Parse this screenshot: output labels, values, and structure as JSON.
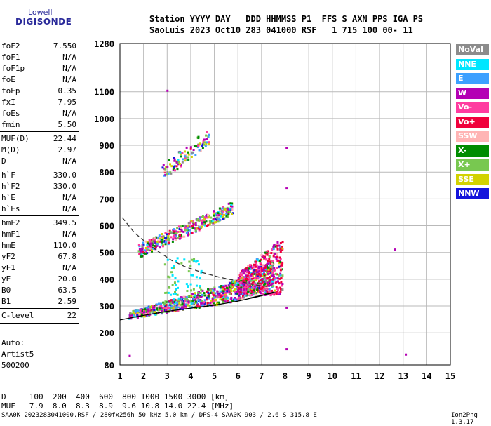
{
  "logo": {
    "line1": "Lowell",
    "line2": "DIGISONDE"
  },
  "header": {
    "line1": "Station YYYY DAY   DDD HHMMSS P1  FFS S AXN PPS IGA PS",
    "line2": "SaoLuis 2023 Oct10 283 041000 RSF   1 715 100 00- 11"
  },
  "params": [
    {
      "name": "foF2",
      "value": "7.550"
    },
    {
      "name": "foF1",
      "value": "N/A"
    },
    {
      "name": "foF1p",
      "value": "N/A"
    },
    {
      "name": "foE",
      "value": "N/A"
    },
    {
      "name": "foEp",
      "value": "0.35"
    },
    {
      "name": "fxI",
      "value": "7.95"
    },
    {
      "name": "foEs",
      "value": "N/A"
    },
    {
      "name": "fmin",
      "value": "5.50"
    },
    {
      "name": "MUF(D)",
      "value": "22.44"
    },
    {
      "name": "M(D)",
      "value": "2.97"
    },
    {
      "name": "D",
      "value": "N/A"
    },
    {
      "name": "h`F",
      "value": "330.0"
    },
    {
      "name": "h`F2",
      "value": "330.0"
    },
    {
      "name": "h`E",
      "value": "N/A"
    },
    {
      "name": "h`Es",
      "value": "N/A"
    },
    {
      "name": "hmF2",
      "value": "349.5"
    },
    {
      "name": "hmF1",
      "value": "N/A"
    },
    {
      "name": "hmE",
      "value": "110.0"
    },
    {
      "name": "yF2",
      "value": "67.8"
    },
    {
      "name": "yF1",
      "value": "N/A"
    },
    {
      "name": "yE",
      "value": "20.0"
    },
    {
      "name": "B0",
      "value": "63.5"
    },
    {
      "name": "B1",
      "value": "2.59"
    },
    {
      "name": "C-level",
      "value": "22"
    }
  ],
  "autoscale": {
    "line1": "Auto:",
    "line2": "Artist5",
    "line3": "500200"
  },
  "legend": [
    {
      "label": "NoVal",
      "color": "#8c8c8c"
    },
    {
      "label": "NNE",
      "color": "#00e6ff"
    },
    {
      "label": "E",
      "color": "#3ca0ff"
    },
    {
      "label": "W",
      "color": "#b400b4"
    },
    {
      "label": "Vo-",
      "color": "#ff3ca0"
    },
    {
      "label": "Vo+",
      "color": "#f0003c"
    },
    {
      "label": "SSW",
      "color": "#ffb4b4"
    },
    {
      "label": "X-",
      "color": "#008c00"
    },
    {
      "label": "X+",
      "color": "#78c850"
    },
    {
      "label": "SSE",
      "color": "#d2d200"
    },
    {
      "label": "NNW",
      "color": "#1414dc"
    }
  ],
  "footer": {
    "line1": "D     100  200  400  600  800 1000 1500 3000 [km]",
    "line2": "MUF   7.9  8.0  8.3  8.9  9.6 10.8 14.0 22.4 [MHz]",
    "credit": "SAA0K_2023283041000.RSF / 280fx256h 50 kHz 5.0 km / DPS-4 SAA0K 903 / 2.6 S 315.8 E",
    "version": "Ion2Png 1.3.17"
  },
  "chart_data": {
    "type": "scatter",
    "x_unit": "MHz",
    "y_unit": "km",
    "xlim": [
      1,
      15
    ],
    "ylim": [
      80,
      1280
    ],
    "x_ticks": [
      "1",
      "2",
      "3",
      "4",
      "5",
      "6",
      "7",
      "8",
      "9",
      "10",
      "11",
      "12",
      "13",
      "14",
      "15"
    ],
    "y_ticks": [
      "80",
      "200",
      "300",
      "400",
      "500",
      "600",
      "700",
      "800",
      "900",
      "1000",
      "1100",
      "1280"
    ],
    "grid": true,
    "traces": [
      {
        "name": "F2 1-hop",
        "xmin": 1.4,
        "xmax": 7.55,
        "hmin": 250,
        "hmax": 360
      },
      {
        "name": "F2 2-hop",
        "xmin": 1.8,
        "xmax": 5.8,
        "hmin": 490,
        "hmax": 720
      },
      {
        "name": "F2 3-hop",
        "xmin": 2.8,
        "xmax": 4.8,
        "hmin": 770,
        "hmax": 950
      },
      {
        "name": "F spread",
        "xmin": 6.0,
        "xmax": 7.9,
        "hmin": 330,
        "hmax": 550
      }
    ],
    "profile_curve": [
      [
        1.0,
        248
      ],
      [
        2.0,
        265
      ],
      [
        3.0,
        280
      ],
      [
        4.0,
        292
      ],
      [
        5.0,
        303
      ],
      [
        6.0,
        318
      ],
      [
        7.0,
        338
      ],
      [
        7.5,
        352
      ],
      [
        7.55,
        350
      ],
      [
        6.5,
        330
      ]
    ],
    "dashed_curve": [
      [
        1.1,
        630
      ],
      [
        1.6,
        575
      ],
      [
        2.0,
        545
      ],
      [
        2.6,
        505
      ],
      [
        3.2,
        470
      ],
      [
        3.8,
        445
      ],
      [
        4.5,
        425
      ],
      [
        5.2,
        408
      ],
      [
        6.0,
        393
      ],
      [
        6.8,
        378
      ],
      [
        7.3,
        372
      ]
    ],
    "isolated_points": [
      [
        8.05,
        890
      ],
      [
        8.05,
        740
      ],
      [
        8.05,
        295
      ],
      [
        8.05,
        140
      ],
      [
        12.65,
        512
      ],
      [
        13.1,
        120
      ],
      [
        1.4,
        115
      ],
      [
        3.0,
        1105
      ]
    ]
  }
}
